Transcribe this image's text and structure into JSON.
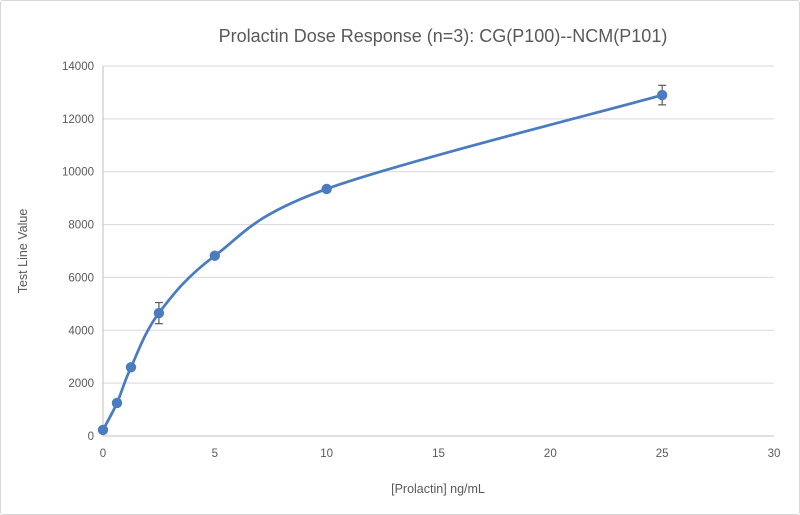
{
  "chart_data": {
    "type": "scatter",
    "subtype": "smooth-line-with-markers",
    "title": "Prolactin Dose Response (n=3): CG(P100)--NCM(P101)",
    "xlabel": "[Prolactin] ng/mL",
    "ylabel": "Test Line Value",
    "x": [
      0,
      0.625,
      1.25,
      2.5,
      5,
      10,
      25
    ],
    "y": [
      230,
      1250,
      2600,
      4650,
      6820,
      9350,
      12900
    ],
    "y_err": [
      0,
      0,
      0,
      400,
      0,
      0,
      370
    ],
    "xlim": [
      0,
      30
    ],
    "ylim": [
      0,
      14000
    ],
    "x_ticks": [
      0,
      5,
      10,
      15,
      20,
      25,
      30
    ],
    "y_ticks": [
      0,
      2000,
      4000,
      6000,
      8000,
      10000,
      12000,
      14000
    ],
    "grid": "horizontal-only",
    "legend": "none",
    "colors": {
      "line": "#4a7cbf",
      "marker": "#4a7cbf",
      "error_bar": "#595959",
      "gridline": "#d9d9d9",
      "axis_line": "#bfbfbf",
      "text": "#595959",
      "frame_border": "#d7d7d7",
      "background": "#ffffff"
    }
  }
}
